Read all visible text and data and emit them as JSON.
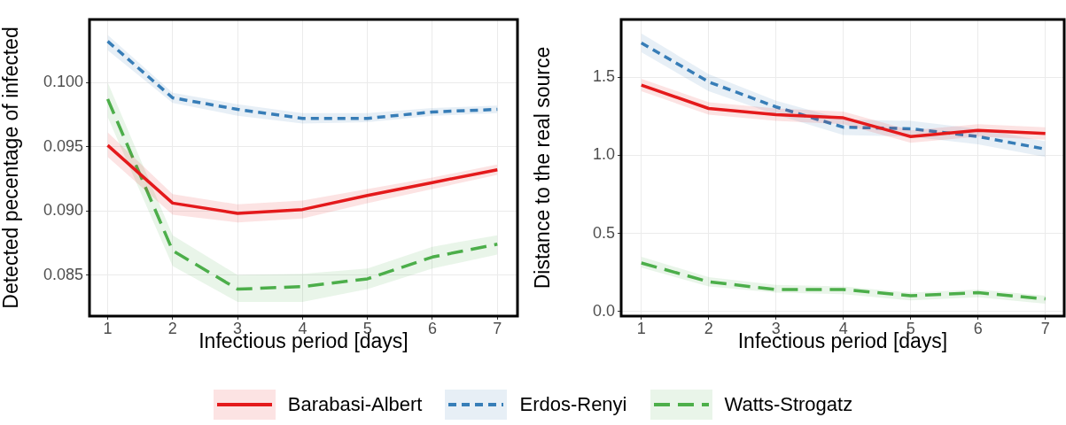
{
  "chart_data": [
    {
      "type": "line",
      "xlabel": "Infectious period [days]",
      "ylabel": "Detected pecentage of infected",
      "x": [
        1,
        2,
        3,
        4,
        5,
        6,
        7
      ],
      "xlim": [
        0.72,
        7.31
      ],
      "xticks": [
        1,
        2,
        3,
        4,
        5,
        6,
        7
      ],
      "ylim": [
        0.0818,
        0.1049
      ],
      "yticks": [
        0.085,
        {
          "value": 0.09,
          "label": "0.090"
        },
        0.095,
        {
          "value": 0.1,
          "label": "0.100"
        }
      ],
      "grid": true,
      "legend": "bottom",
      "series": [
        {
          "name": "Barabasi-Albert",
          "color": "#e41a1c",
          "line_style": "solid",
          "values": [
            0.0951,
            0.0906,
            0.0898,
            0.0901,
            0.0912,
            0.0922,
            0.0932
          ],
          "lower": [
            0.0942,
            0.0897,
            0.0891,
            0.0894,
            0.0906,
            0.0917,
            0.0928
          ],
          "upper": [
            0.0961,
            0.0913,
            0.0905,
            0.0908,
            0.0917,
            0.0926,
            0.0936
          ]
        },
        {
          "name": "Erdos-Renyi",
          "color": "#377eb8",
          "line_style": "dotted",
          "values": [
            0.1032,
            0.0988,
            0.0979,
            0.0972,
            0.0972,
            0.0977,
            0.0979
          ],
          "lower": [
            0.1025,
            0.0984,
            0.0974,
            0.0968,
            0.0969,
            0.0974,
            0.0976
          ],
          "upper": [
            0.1037,
            0.0992,
            0.0983,
            0.0976,
            0.0976,
            0.098,
            0.0982
          ]
        },
        {
          "name": "Watts-Strogatz",
          "color": "#4daf4a",
          "line_style": "dashed",
          "values": [
            0.0987,
            0.0869,
            0.0839,
            0.0841,
            0.0847,
            0.0864,
            0.0874
          ],
          "lower": [
            0.0973,
            0.0857,
            0.0829,
            0.0829,
            0.0839,
            0.0855,
            0.0866
          ],
          "upper": [
            0.1,
            0.0881,
            0.085,
            0.0851,
            0.0855,
            0.0872,
            0.0881
          ]
        }
      ]
    },
    {
      "type": "line",
      "xlabel": "Infectious period [days]",
      "ylabel": "Distance to the real source",
      "x": [
        1,
        2,
        3,
        4,
        5,
        6,
        7
      ],
      "xlim": [
        0.7,
        7.28
      ],
      "xticks": [
        1,
        2,
        3,
        4,
        5,
        6,
        7
      ],
      "ylim": [
        -0.03,
        1.87
      ],
      "yticks": [
        {
          "value": 0,
          "label": "0.0"
        },
        0.5,
        {
          "value": 1,
          "label": "1.0"
        },
        1.5
      ],
      "grid": true,
      "series": [
        {
          "color": "#e41a1c",
          "line_style": "solid",
          "values": [
            1.45,
            1.3,
            1.26,
            1.24,
            1.12,
            1.16,
            1.14
          ],
          "lower": [
            1.41,
            1.26,
            1.22,
            1.2,
            1.08,
            1.12,
            1.1
          ],
          "upper": [
            1.49,
            1.34,
            1.3,
            1.28,
            1.16,
            1.2,
            1.18
          ]
        },
        {
          "color": "#377eb8",
          "line_style": "dotted",
          "values": [
            1.72,
            1.47,
            1.31,
            1.18,
            1.17,
            1.12,
            1.04
          ],
          "lower": [
            1.66,
            1.41,
            1.26,
            1.13,
            1.12,
            1.07,
            0.99
          ],
          "upper": [
            1.78,
            1.52,
            1.35,
            1.23,
            1.22,
            1.17,
            1.09
          ]
        },
        {
          "color": "#4daf4a",
          "line_style": "dashed",
          "values": [
            0.31,
            0.19,
            0.14,
            0.14,
            0.1,
            0.12,
            0.08
          ],
          "lower": [
            0.28,
            0.16,
            0.12,
            0.11,
            0.07,
            0.09,
            0.05
          ],
          "upper": [
            0.35,
            0.22,
            0.17,
            0.16,
            0.12,
            0.14,
            0.1
          ]
        }
      ]
    }
  ]
}
